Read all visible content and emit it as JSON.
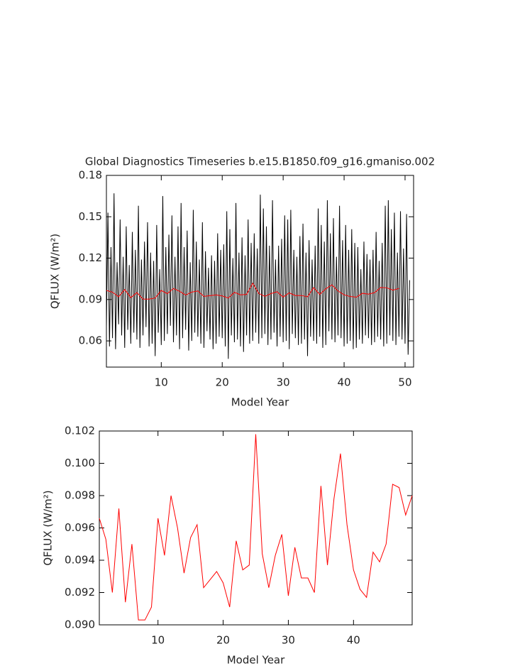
{
  "chart_data": [
    {
      "type": "line",
      "title": "Global Diagnostics Timeseries b.e15.B1850.f09_g16.gmaniso.002",
      "xlabel": "Model Year",
      "ylabel": "QFLUX (W/m²)",
      "xlim": [
        1,
        51.4
      ],
      "ylim": [
        0.041,
        0.18
      ],
      "xticks": [
        10,
        20,
        30,
        40,
        50
      ],
      "yticks": [
        0.06,
        0.09,
        0.12,
        0.15,
        0.18
      ],
      "series": [
        {
          "color": "#000000",
          "x": [
            1,
            1.25,
            1.5,
            1.75,
            2,
            2.25,
            2.5,
            2.75,
            3,
            3.25,
            3.5,
            3.75,
            4,
            4.25,
            4.5,
            4.75,
            5,
            5.25,
            5.5,
            5.75,
            6,
            6.25,
            6.5,
            6.75,
            7,
            7.25,
            7.5,
            7.75,
            8,
            8.25,
            8.5,
            8.75,
            9,
            9.25,
            9.5,
            9.75,
            10,
            10.25,
            10.5,
            10.75,
            11,
            11.25,
            11.5,
            11.75,
            12,
            12.25,
            12.5,
            12.75,
            13,
            13.25,
            13.5,
            13.75,
            14,
            14.25,
            14.5,
            14.75,
            15,
            15.25,
            15.5,
            15.75,
            16,
            16.25,
            16.5,
            16.75,
            17,
            17.25,
            17.5,
            17.75,
            18,
            18.25,
            18.5,
            18.75,
            19,
            19.25,
            19.5,
            19.75,
            20,
            20.25,
            20.5,
            20.75,
            21,
            21.25,
            21.5,
            21.75,
            22,
            22.25,
            22.5,
            22.75,
            23,
            23.25,
            23.5,
            23.75,
            24,
            24.25,
            24.5,
            24.75,
            25,
            25.25,
            25.5,
            25.75,
            26,
            26.25,
            26.5,
            26.75,
            27,
            27.25,
            27.5,
            27.75,
            28,
            28.25,
            28.5,
            28.75,
            29,
            29.25,
            29.5,
            29.75,
            30,
            30.25,
            30.5,
            30.75,
            31,
            31.25,
            31.5,
            31.75,
            32,
            32.25,
            32.5,
            32.75,
            33,
            33.25,
            33.5,
            33.75,
            34,
            34.25,
            34.5,
            34.75,
            35,
            35.25,
            35.5,
            35.75,
            36,
            36.25,
            36.5,
            36.75,
            37,
            37.25,
            37.5,
            37.75,
            38,
            38.25,
            38.5,
            38.75,
            39,
            39.25,
            39.5,
            39.75,
            40,
            40.25,
            40.5,
            40.75,
            41,
            41.25,
            41.5,
            41.75,
            42,
            42.25,
            42.5,
            42.75,
            43,
            43.25,
            43.5,
            43.75,
            44,
            44.25,
            44.5,
            44.75,
            45,
            45.25,
            45.5,
            45.75,
            46,
            46.25,
            46.5,
            46.75,
            47,
            47.25,
            47.5,
            47.75,
            48,
            48.25,
            48.5,
            48.75,
            49,
            49.25,
            49.5,
            49.75,
            50,
            50.25,
            50.5,
            50.75
          ],
          "values": [
            0.07,
            0.153,
            0.056,
            0.128,
            0.062,
            0.167,
            0.054,
            0.117,
            0.072,
            0.148,
            0.064,
            0.121,
            0.055,
            0.143,
            0.068,
            0.115,
            0.058,
            0.139,
            0.066,
            0.126,
            0.061,
            0.158,
            0.055,
            0.119,
            0.064,
            0.132,
            0.07,
            0.146,
            0.056,
            0.124,
            0.058,
            0.118,
            0.049,
            0.144,
            0.066,
            0.112,
            0.057,
            0.165,
            0.06,
            0.128,
            0.065,
            0.137,
            0.071,
            0.151,
            0.059,
            0.121,
            0.064,
            0.143,
            0.054,
            0.16,
            0.062,
            0.128,
            0.068,
            0.14,
            0.053,
            0.117,
            0.06,
            0.155,
            0.066,
            0.132,
            0.063,
            0.119,
            0.058,
            0.146,
            0.055,
            0.125,
            0.067,
            0.113,
            0.061,
            0.122,
            0.054,
            0.118,
            0.058,
            0.138,
            0.063,
            0.126,
            0.062,
            0.13,
            0.056,
            0.154,
            0.047,
            0.141,
            0.064,
            0.12,
            0.059,
            0.16,
            0.061,
            0.124,
            0.056,
            0.135,
            0.052,
            0.122,
            0.064,
            0.148,
            0.058,
            0.131,
            0.06,
            0.138,
            0.066,
            0.127,
            0.058,
            0.166,
            0.062,
            0.156,
            0.065,
            0.143,
            0.057,
            0.129,
            0.061,
            0.162,
            0.066,
            0.119,
            0.056,
            0.129,
            0.063,
            0.134,
            0.059,
            0.151,
            0.06,
            0.148,
            0.054,
            0.155,
            0.065,
            0.126,
            0.062,
            0.121,
            0.057,
            0.136,
            0.058,
            0.145,
            0.061,
            0.124,
            0.049,
            0.133,
            0.063,
            0.119,
            0.06,
            0.129,
            0.058,
            0.156,
            0.063,
            0.144,
            0.055,
            0.132,
            0.057,
            0.162,
            0.067,
            0.138,
            0.061,
            0.149,
            0.059,
            0.121,
            0.064,
            0.158,
            0.062,
            0.133,
            0.056,
            0.144,
            0.058,
            0.126,
            0.06,
            0.141,
            0.054,
            0.131,
            0.055,
            0.128,
            0.061,
            0.112,
            0.058,
            0.132,
            0.064,
            0.123,
            0.062,
            0.119,
            0.057,
            0.126,
            0.059,
            0.139,
            0.063,
            0.118,
            0.061,
            0.131,
            0.056,
            0.158,
            0.058,
            0.162,
            0.064,
            0.141,
            0.06,
            0.153,
            0.057,
            0.124,
            0.063,
            0.154,
            0.061,
            0.127,
            0.058,
            0.152,
            0.05,
            0.104
          ]
        },
        {
          "color": "#ff0000",
          "x": [
            1,
            2,
            3,
            4,
            5,
            6,
            7,
            8,
            9,
            10,
            11,
            12,
            13,
            14,
            15,
            16,
            17,
            18,
            19,
            20,
            21,
            22,
            23,
            24,
            25,
            26,
            27,
            28,
            29,
            30,
            31,
            32,
            33,
            34,
            35,
            36,
            37,
            38,
            39,
            40,
            41,
            42,
            43,
            44,
            45,
            46,
            47,
            48,
            49
          ],
          "values": [
            0.0966,
            0.0953,
            0.092,
            0.0972,
            0.0914,
            0.095,
            0.0903,
            0.0903,
            0.0911,
            0.0966,
            0.0943,
            0.098,
            0.096,
            0.0932,
            0.0954,
            0.0962,
            0.0923,
            0.0928,
            0.0933,
            0.0926,
            0.0911,
            0.0952,
            0.0934,
            0.0937,
            0.1018,
            0.0944,
            0.0923,
            0.0943,
            0.0956,
            0.0918,
            0.0948,
            0.0929,
            0.0929,
            0.092,
            0.0986,
            0.0937,
            0.0978,
            0.1006,
            0.0962,
            0.0934,
            0.0922,
            0.0917,
            0.0945,
            0.0939,
            0.095,
            0.0987,
            0.0985,
            0.0968,
            0.098
          ]
        }
      ]
    },
    {
      "type": "line",
      "xlabel": "Model Year",
      "ylabel": "QFLUX (W/m²)",
      "xlim": [
        1,
        49
      ],
      "ylim": [
        0.09,
        0.102
      ],
      "xticks": [
        10,
        20,
        30,
        40
      ],
      "yticks": [
        {
          "value": 0.09,
          "label": "0.090"
        },
        {
          "value": 0.092,
          "label": "0.092"
        },
        {
          "value": 0.094,
          "label": "0.094"
        },
        {
          "value": 0.096,
          "label": "0.096"
        },
        {
          "value": 0.098,
          "label": "0.098"
        },
        {
          "value": 0.1,
          "label": "0.100"
        },
        {
          "value": 0.102,
          "label": "0.102"
        }
      ],
      "series": [
        {
          "color": "#ff0000",
          "x": [
            1,
            2,
            3,
            4,
            5,
            6,
            7,
            8,
            9,
            10,
            11,
            12,
            13,
            14,
            15,
            16,
            17,
            18,
            19,
            20,
            21,
            22,
            23,
            24,
            25,
            26,
            27,
            28,
            29,
            30,
            31,
            32,
            33,
            34,
            35,
            36,
            37,
            38,
            39,
            40,
            41,
            42,
            43,
            44,
            45,
            46,
            47,
            48,
            49
          ],
          "values": [
            0.0966,
            0.0953,
            0.092,
            0.0972,
            0.0914,
            0.095,
            0.0903,
            0.0903,
            0.0911,
            0.0966,
            0.0943,
            0.098,
            0.096,
            0.0932,
            0.0954,
            0.0962,
            0.0923,
            0.0928,
            0.0933,
            0.0926,
            0.0911,
            0.0952,
            0.0934,
            0.0937,
            0.1018,
            0.0944,
            0.0923,
            0.0943,
            0.0956,
            0.0918,
            0.0948,
            0.0929,
            0.0929,
            0.092,
            0.0986,
            0.0937,
            0.0978,
            0.1006,
            0.0962,
            0.0934,
            0.0922,
            0.0917,
            0.0945,
            0.0939,
            0.095,
            0.0987,
            0.0985,
            0.0968,
            0.098
          ]
        }
      ]
    }
  ]
}
